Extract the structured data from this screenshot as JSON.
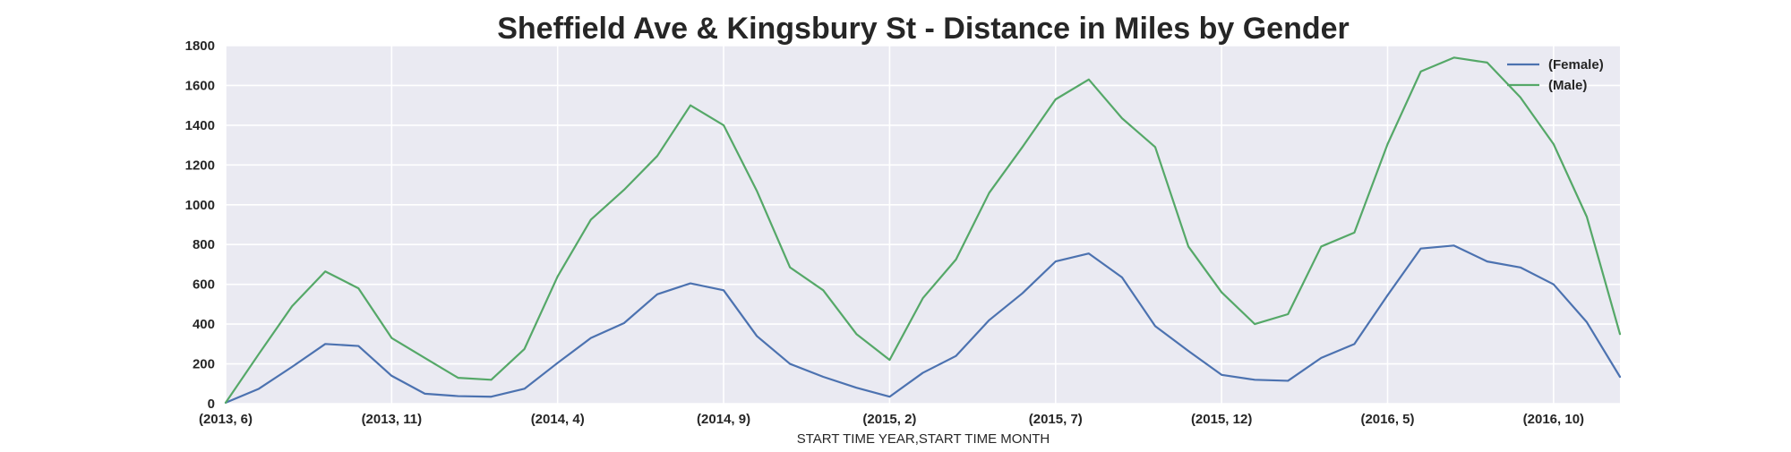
{
  "chart_data": {
    "type": "line",
    "title": "Sheffield Ave & Kingsbury St - Distance in Miles by Gender",
    "xlabel": "START TIME YEAR,START TIME MONTH",
    "ylabel": "",
    "ylim": [
      0,
      1800
    ],
    "yticks": [
      0,
      200,
      400,
      600,
      800,
      1000,
      1200,
      1400,
      1600,
      1800
    ],
    "categories": [
      "(2013, 6)",
      "(2013, 7)",
      "(2013, 8)",
      "(2013, 9)",
      "(2013, 10)",
      "(2013, 11)",
      "(2013, 12)",
      "(2014, 1)",
      "(2014, 2)",
      "(2014, 3)",
      "(2014, 4)",
      "(2014, 5)",
      "(2014, 6)",
      "(2014, 7)",
      "(2014, 8)",
      "(2014, 9)",
      "(2014, 10)",
      "(2014, 11)",
      "(2014, 12)",
      "(2015, 1)",
      "(2015, 2)",
      "(2015, 3)",
      "(2015, 4)",
      "(2015, 5)",
      "(2015, 6)",
      "(2015, 7)",
      "(2015, 8)",
      "(2015, 9)",
      "(2015, 10)",
      "(2015, 11)",
      "(2015, 12)",
      "(2016, 1)",
      "(2016, 2)",
      "(2016, 3)",
      "(2016, 4)",
      "(2016, 5)",
      "(2016, 6)",
      "(2016, 7)",
      "(2016, 8)",
      "(2016, 9)",
      "(2016, 10)",
      "(2016, 11)",
      "(2016, 12)"
    ],
    "xtick_labels": [
      "(2013, 6)",
      "(2013, 11)",
      "(2014, 4)",
      "(2014, 9)",
      "(2015, 2)",
      "(2015, 7)",
      "(2015, 12)",
      "(2016, 5)",
      "(2016, 10)"
    ],
    "series": [
      {
        "name": "(Female)",
        "color": "#4c72b0",
        "values": [
          5,
          75,
          185,
          300,
          290,
          140,
          50,
          38,
          35,
          75,
          205,
          330,
          405,
          550,
          605,
          570,
          340,
          200,
          135,
          80,
          35,
          155,
          240,
          420,
          555,
          715,
          755,
          635,
          390,
          265,
          145,
          120,
          115,
          230,
          300,
          545,
          780,
          795,
          715,
          685,
          600,
          410,
          135
        ]
      },
      {
        "name": "(Male)",
        "color": "#55a868",
        "values": [
          5,
          250,
          490,
          665,
          580,
          330,
          230,
          130,
          120,
          275,
          640,
          925,
          1075,
          1245,
          1500,
          1400,
          1070,
          685,
          570,
          350,
          220,
          530,
          725,
          1060,
          1290,
          1530,
          1630,
          1435,
          1290,
          790,
          560,
          400,
          450,
          790,
          860,
          1305,
          1670,
          1740,
          1715,
          1540,
          1305,
          940,
          350
        ]
      }
    ],
    "legend": "top-right",
    "grid": true,
    "background": "#eaeaf2",
    "gridcolor": "#ffffff"
  }
}
